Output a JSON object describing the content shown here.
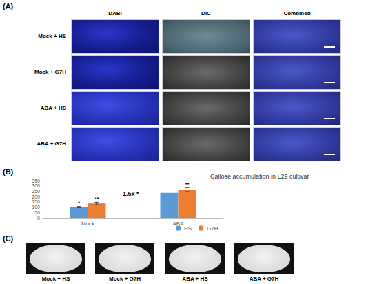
{
  "figure": {
    "panel_a": {
      "label": "(A)",
      "columns": [
        "DABI",
        "DIC",
        "Combined"
      ],
      "rows": [
        "Mock + HS",
        "Mock + G7H",
        "ABA + HS",
        "ABA + G7H"
      ]
    },
    "panel_b": {
      "label": "(B)"
    },
    "panel_c": {
      "label": "(C)",
      "items": [
        "Mock + HS",
        "Mock + G7H",
        "ABA + HS",
        "ABA + G7H"
      ]
    }
  },
  "chart_data": {
    "type": "bar",
    "title": "Callose accumulation in L29 cultivar",
    "categories": [
      "Mock",
      "ABA"
    ],
    "series": [
      {
        "name": "HS",
        "color": "#5b9bd5",
        "values": [
          100,
          235
        ],
        "errors": [
          6,
          0
        ],
        "significance": [
          "*",
          null
        ]
      },
      {
        "name": "G7H",
        "color": "#ed7d31",
        "values": [
          135,
          265
        ],
        "errors": [
          12,
          18
        ],
        "significance": [
          "**",
          "**"
        ]
      }
    ],
    "annotations": [
      "1.5x *"
    ],
    "ylim": [
      0,
      350
    ],
    "yticks": [
      0,
      50,
      100,
      150,
      200,
      250,
      300,
      350
    ],
    "grid": false,
    "legend": "bottom"
  }
}
